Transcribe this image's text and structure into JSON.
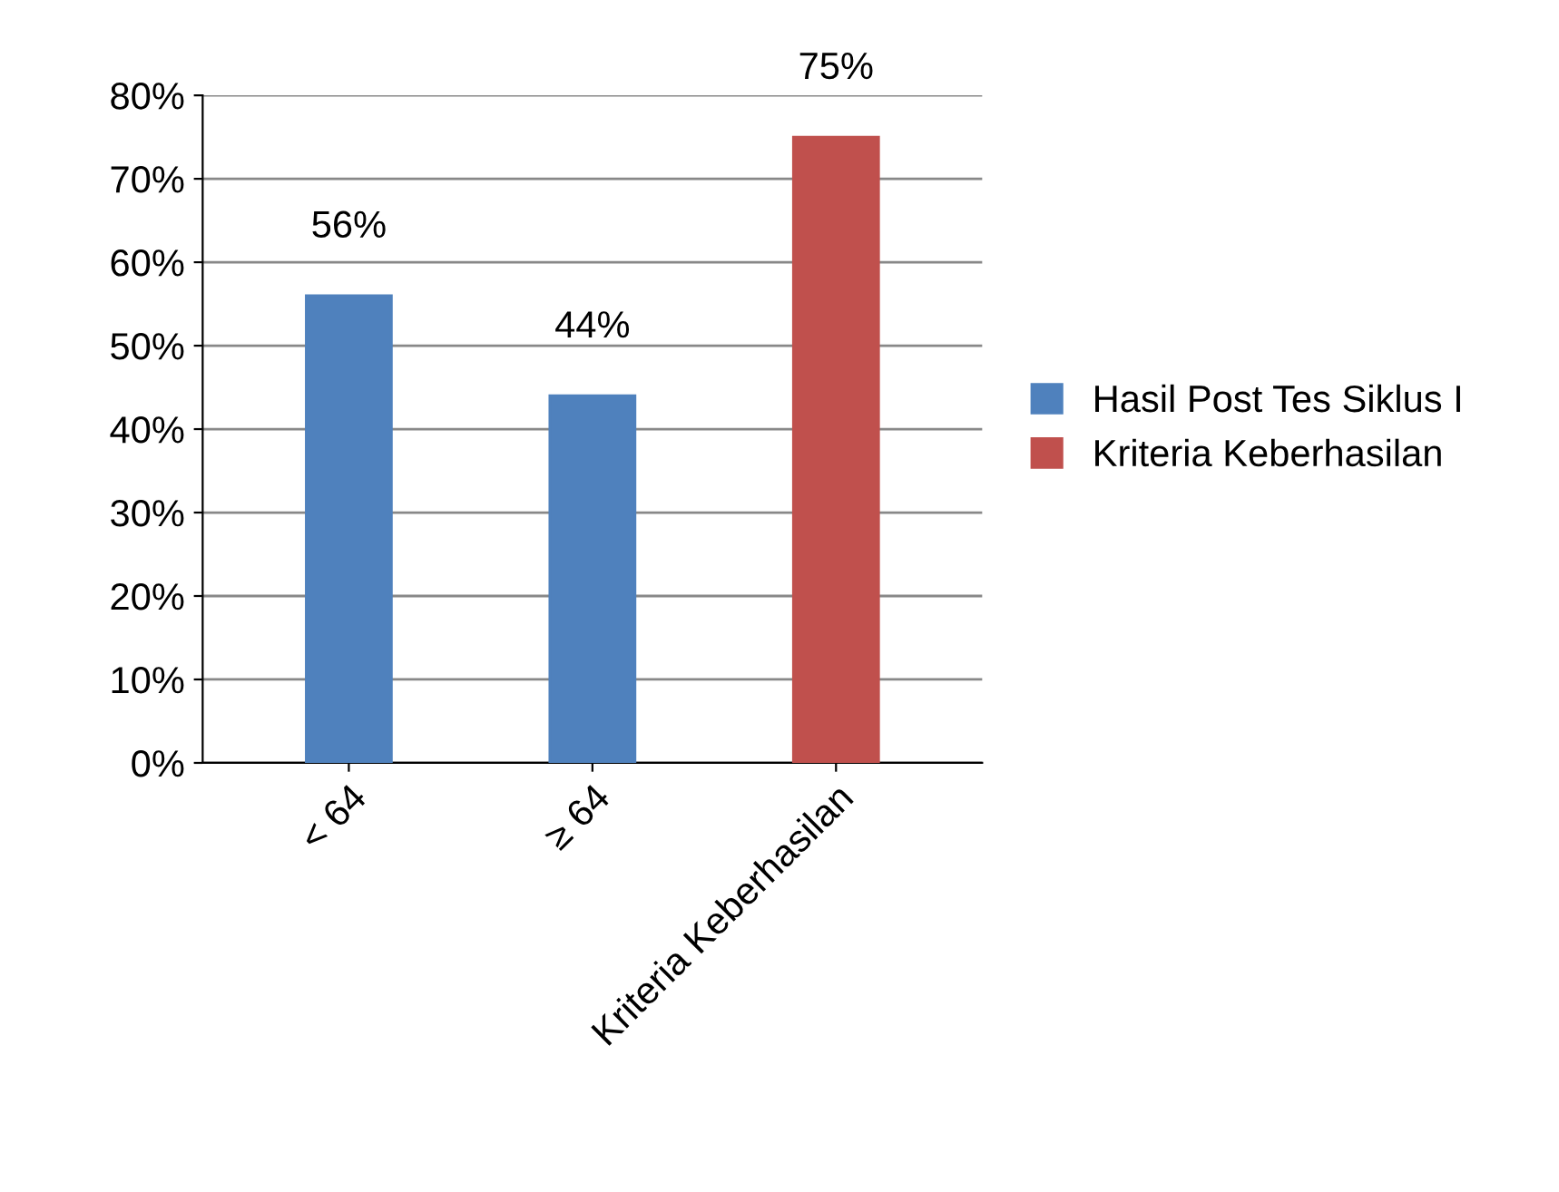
{
  "chart_data": {
    "type": "bar",
    "categories": [
      "< 64",
      "≥ 64",
      "Kriteria Keberhasilan"
    ],
    "series": [
      {
        "name": "Hasil Post Tes Siklus I",
        "color": "#4f81bd",
        "values": [
          56,
          44,
          null
        ],
        "value_labels": [
          "56%",
          "44%",
          null
        ]
      },
      {
        "name": "Kriteria Keberhasilan",
        "color": "#c0504d",
        "values": [
          null,
          null,
          75
        ],
        "value_labels": [
          null,
          null,
          "75%"
        ]
      }
    ],
    "ylim": [
      0,
      80
    ],
    "yticks": [
      {
        "value": 0,
        "label": "0%"
      },
      {
        "value": 10,
        "label": "10%"
      },
      {
        "value": 20,
        "label": "20%"
      },
      {
        "value": 30,
        "label": "30%"
      },
      {
        "value": 40,
        "label": "40%"
      },
      {
        "value": 50,
        "label": "50%"
      },
      {
        "value": 60,
        "label": "60%"
      },
      {
        "value": 70,
        "label": "70%"
      },
      {
        "value": 80,
        "label": "80%"
      }
    ],
    "grid": "y",
    "legend": "right"
  }
}
